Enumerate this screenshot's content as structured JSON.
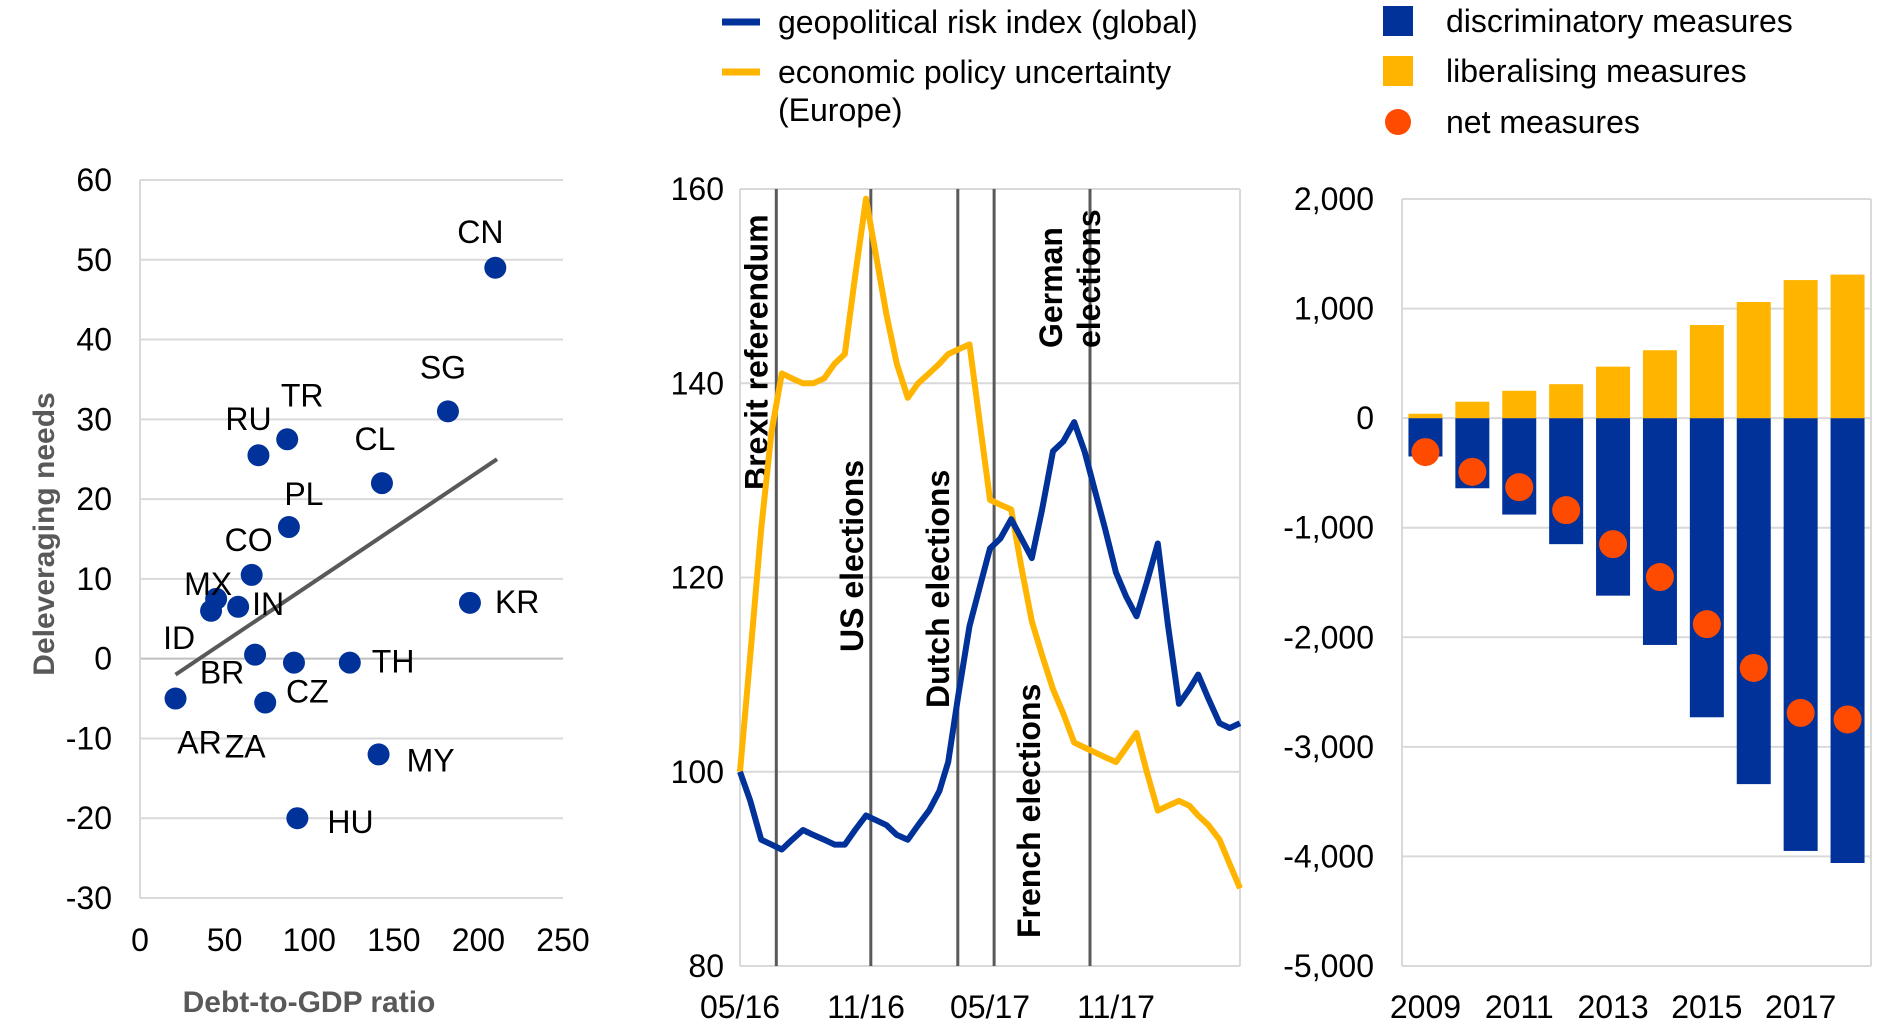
{
  "chart_data": [
    {
      "type": "scatter",
      "xlabel": "Debt-to-GDP ratio",
      "ylabel": "Deleveraging needs",
      "xlim": [
        0,
        250
      ],
      "ylim": [
        -30,
        60
      ],
      "xticks": [
        0,
        50,
        100,
        150,
        200,
        250
      ],
      "yticks": [
        -30,
        -20,
        -10,
        0,
        10,
        20,
        30,
        40,
        50,
        60
      ],
      "grid": "horizontal",
      "points": [
        {
          "label": "CN",
          "x": 210,
          "y": 49
        },
        {
          "label": "SG",
          "x": 182,
          "y": 31
        },
        {
          "label": "RU",
          "x": 70,
          "y": 25.5
        },
        {
          "label": "TR",
          "x": 87,
          "y": 27.5
        },
        {
          "label": "CL",
          "x": 143,
          "y": 22
        },
        {
          "label": "PL",
          "x": 88,
          "y": 16.5
        },
        {
          "label": "CO",
          "x": 66,
          "y": 10.5
        },
        {
          "label": "MX",
          "x": 45,
          "y": 7.5
        },
        {
          "label": "IN",
          "x": 58,
          "y": 6.5
        },
        {
          "label": "ID",
          "x": 42,
          "y": 6
        },
        {
          "label": "KR",
          "x": 195,
          "y": 7
        },
        {
          "label": "BR",
          "x": 68,
          "y": 0.5
        },
        {
          "label": "CZ",
          "x": 91,
          "y": -0.5
        },
        {
          "label": "TH",
          "x": 124,
          "y": -0.5
        },
        {
          "label": "AR",
          "x": 21,
          "y": -5
        },
        {
          "label": "ZA",
          "x": 74,
          "y": -5.5
        },
        {
          "label": "MY",
          "x": 141,
          "y": -12
        },
        {
          "label": "HU",
          "x": 93,
          "y": -20
        }
      ],
      "trendline": {
        "x": [
          21,
          211
        ],
        "y": [
          -2,
          25
        ]
      },
      "colors": {
        "points": "#003299",
        "trendline": "#595959",
        "grid": "#d9d9d9"
      }
    },
    {
      "type": "line",
      "x_tick_labels": [
        "05/16",
        "11/16",
        "05/17",
        "11/17"
      ],
      "x_start": "05/16",
      "x_end": "05/18",
      "ylim": [
        80,
        160
      ],
      "yticks": [
        80,
        100,
        120,
        140,
        160
      ],
      "legend_position": "top",
      "series": [
        {
          "name": "geopolitical risk index (global)",
          "color": "#003299",
          "dates": [
            "2016-05-01",
            "2016-05-16",
            "2016-06-01",
            "2016-06-16",
            "2016-07-01",
            "2016-07-16",
            "2016-08-01",
            "2016-08-16",
            "2016-09-01",
            "2016-09-16",
            "2016-10-01",
            "2016-10-16",
            "2016-11-01",
            "2016-11-16",
            "2016-12-01",
            "2016-12-16",
            "2017-01-01",
            "2017-01-16",
            "2017-02-01",
            "2017-02-16",
            "2017-03-01",
            "2017-03-16",
            "2017-04-01",
            "2017-04-16",
            "2017-05-01",
            "2017-05-16",
            "2017-06-01",
            "2017-06-16",
            "2017-07-01",
            "2017-07-16",
            "2017-08-01",
            "2017-08-16",
            "2017-09-01",
            "2017-09-16",
            "2017-10-01",
            "2017-10-16",
            "2017-11-01",
            "2017-11-16",
            "2017-12-01",
            "2017-12-16",
            "2018-01-01",
            "2018-01-16",
            "2018-02-01",
            "2018-02-16",
            "2018-03-01",
            "2018-03-16",
            "2018-04-01",
            "2018-04-16",
            "2018-05-01"
          ],
          "values": [
            100,
            97,
            93,
            92.5,
            92,
            93,
            94,
            93.5,
            93,
            92.5,
            92.5,
            94,
            95.5,
            95,
            94.5,
            93.5,
            93,
            94.5,
            96,
            98,
            101,
            108,
            115,
            119,
            123,
            124,
            126,
            124,
            122,
            127,
            133,
            134,
            136,
            133,
            129,
            125,
            120.5,
            118,
            116,
            119.5,
            123.5,
            115,
            107,
            108.5,
            110,
            107.5,
            105,
            104.5,
            105
          ]
        },
        {
          "name": "economic policy uncertainty (Europe)",
          "color": "#ffb400",
          "dates": [
            "2016-05-01",
            "2016-05-16",
            "2016-06-01",
            "2016-06-16",
            "2016-07-01",
            "2016-07-16",
            "2016-08-01",
            "2016-08-16",
            "2016-09-01",
            "2016-09-16",
            "2016-10-01",
            "2016-10-16",
            "2016-11-01",
            "2016-11-16",
            "2016-12-01",
            "2016-12-16",
            "2017-01-01",
            "2017-01-16",
            "2017-02-01",
            "2017-02-16",
            "2017-03-01",
            "2017-03-16",
            "2017-04-01",
            "2017-04-16",
            "2017-05-01",
            "2017-05-16",
            "2017-06-01",
            "2017-06-16",
            "2017-07-01",
            "2017-07-16",
            "2017-08-01",
            "2017-08-16",
            "2017-09-01",
            "2017-09-16",
            "2017-10-01",
            "2017-10-16",
            "2017-11-01",
            "2017-11-16",
            "2017-12-01",
            "2017-12-16",
            "2018-01-01",
            "2018-01-16",
            "2018-02-01",
            "2018-02-16",
            "2018-03-01",
            "2018-03-16",
            "2018-04-01",
            "2018-04-16",
            "2018-05-01"
          ],
          "values": [
            100,
            112,
            125,
            135,
            141,
            140.5,
            140,
            140,
            140.5,
            142,
            143,
            151,
            159,
            153,
            147,
            142,
            138.5,
            140,
            141,
            142,
            143,
            143.5,
            144,
            136,
            128,
            127.5,
            127,
            121,
            115.5,
            112,
            108.5,
            106,
            103,
            102.5,
            102,
            101.5,
            101,
            102.5,
            104,
            100,
            96,
            96.5,
            97,
            96.5,
            95.5,
            94.5,
            93,
            90.5,
            88
          ]
        }
      ],
      "events": [
        {
          "label": "Brexit referendum",
          "date": "2016-06-23"
        },
        {
          "label": "US elections",
          "date": "2016-11-08"
        },
        {
          "label": "Dutch elections",
          "date": "2017-03-15"
        },
        {
          "label": "French elections",
          "date": "2017-05-07"
        },
        {
          "label": "German elections",
          "date": "2017-09-24"
        }
      ],
      "colors": {
        "event_lines": "#595959",
        "grid": "#d9d9d9"
      }
    },
    {
      "type": "bar",
      "categories": [
        "2009",
        "2010",
        "2011",
        "2012",
        "2013",
        "2014",
        "2015",
        "2016",
        "2017",
        "2018"
      ],
      "x_tick_labels": [
        "2009",
        "2011",
        "2013",
        "2015",
        "2017"
      ],
      "ylim": [
        -5000,
        2000
      ],
      "yticks": [
        -5000,
        -4000,
        -3000,
        -2000,
        -1000,
        0,
        1000,
        2000
      ],
      "ytick_labels": [
        "-5,000",
        "-4,000",
        "-3,000",
        "-2,000",
        "-1,000",
        "0",
        "1,000",
        "2,000"
      ],
      "legend_position": "top",
      "series": [
        {
          "name": "discriminatory measures",
          "kind": "bar",
          "color": "#003299",
          "values": [
            -350,
            -640,
            -880,
            -1150,
            -1620,
            -2070,
            -2730,
            -3340,
            -3950,
            -4060
          ]
        },
        {
          "name": "liberalising measures",
          "kind": "bar",
          "color": "#ffb400",
          "values": [
            40,
            150,
            250,
            310,
            470,
            620,
            850,
            1060,
            1260,
            1310
          ]
        },
        {
          "name": "net measures",
          "kind": "dot",
          "color": "#ff4b00",
          "values": [
            -310,
            -490,
            -630,
            -840,
            -1150,
            -1450,
            -1880,
            -2280,
            -2690,
            -2750
          ]
        }
      ],
      "colors": {
        "grid": "#d9d9d9"
      }
    }
  ]
}
